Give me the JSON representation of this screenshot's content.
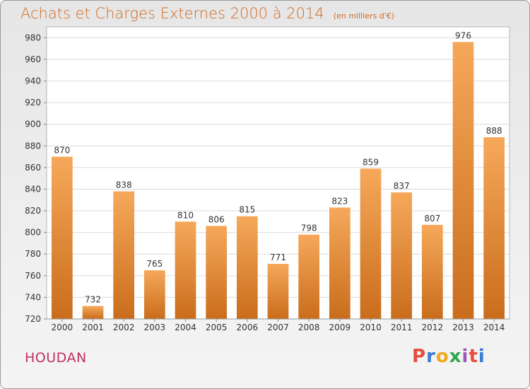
{
  "title": "Achats et Charges Externes 2000 à 2014",
  "subtitle": "(en milliers d'€)",
  "city": "HOUDAN",
  "brand": {
    "letters": [
      "P",
      "r",
      "o",
      "x",
      "i",
      "t",
      "i"
    ],
    "colors": [
      "#e84c3d",
      "#3a7bd5",
      "#f2a81d",
      "#2fa84f",
      "#9b59b6",
      "#e84c3d",
      "#3a7bd5"
    ]
  },
  "colors": {
    "bar_light": "#f6a85a",
    "bar_dark": "#c96d1c",
    "title": "#d06a22",
    "city": "#c0305e"
  },
  "chart_data": {
    "type": "bar",
    "categories": [
      "2000",
      "2001",
      "2002",
      "2003",
      "2004",
      "2005",
      "2006",
      "2007",
      "2008",
      "2009",
      "2010",
      "2011",
      "2012",
      "2013",
      "2014"
    ],
    "values": [
      870,
      732,
      838,
      765,
      810,
      806,
      815,
      771,
      798,
      823,
      859,
      837,
      807,
      976,
      888
    ],
    "ylim": [
      720,
      990
    ],
    "yticks": [
      720,
      740,
      760,
      780,
      800,
      820,
      840,
      860,
      880,
      900,
      920,
      940,
      960,
      980
    ],
    "grid": true,
    "xlabel": "",
    "ylabel": ""
  }
}
